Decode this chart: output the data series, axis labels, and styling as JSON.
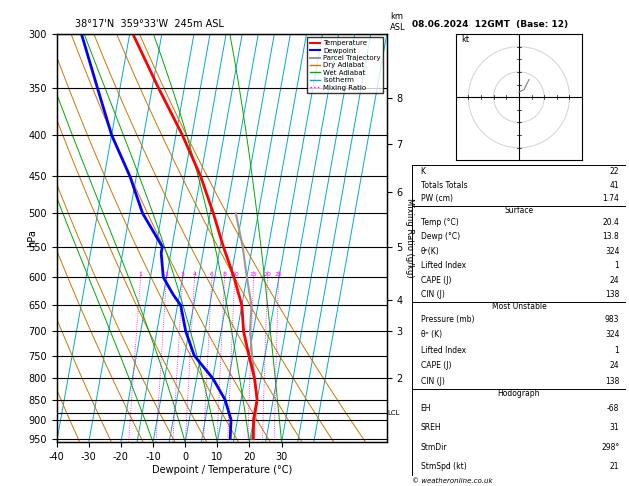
{
  "title_left": "38°17'N  359°33'W  245m ASL",
  "title_right": "08.06.2024  12GMT  (Base: 12)",
  "xlabel": "Dewpoint / Temperature (°C)",
  "ylabel_left": "hPa",
  "pressure_levels": [
    300,
    350,
    400,
    450,
    500,
    550,
    600,
    650,
    700,
    750,
    800,
    850,
    900,
    950
  ],
  "temp_xlim": [
    -40,
    40
  ],
  "temp_labels": [
    -40,
    -30,
    -20,
    -10,
    0,
    10,
    20,
    30
  ],
  "skew_per_decade": 45.0,
  "isotherm_temps": [
    -40,
    -30,
    -20,
    -15,
    -10,
    -5,
    0,
    5,
    10,
    15,
    20,
    25,
    30,
    35,
    40
  ],
  "dry_adiabat_theta": [
    -40,
    -30,
    -20,
    -10,
    0,
    10,
    20,
    30,
    40,
    50,
    60
  ],
  "wet_adiabat_temps": [
    -10,
    0,
    10,
    20,
    30
  ],
  "mixing_ratio_vals": [
    1,
    2,
    3,
    4,
    6,
    8,
    10,
    15,
    20,
    25
  ],
  "lcl_pressure": 883,
  "temperature_profile": {
    "pressure": [
      300,
      350,
      400,
      450,
      500,
      550,
      600,
      650,
      700,
      750,
      800,
      850,
      900,
      950
    ],
    "temp": [
      -39,
      -28,
      -18,
      -10,
      -4,
      1,
      6,
      10,
      12,
      15,
      18,
      20,
      20,
      21
    ]
  },
  "dewpoint_profile": {
    "pressure": [
      300,
      350,
      400,
      450,
      500,
      550,
      560,
      600,
      630,
      650,
      700,
      750,
      800,
      850,
      900,
      950
    ],
    "temp": [
      -55,
      -47,
      -40,
      -32,
      -26,
      -18,
      -18,
      -16,
      -12,
      -9,
      -6,
      -2,
      5,
      10,
      13,
      13.8
    ]
  },
  "parcel_profile": {
    "pressure": [
      500,
      550,
      600,
      650,
      700,
      750,
      800,
      850,
      883,
      900,
      950
    ],
    "temp": [
      3,
      7,
      10,
      13,
      14,
      16,
      18,
      20,
      20.4,
      20.4,
      20.4
    ]
  },
  "temperature_color": "#ff0000",
  "dewpoint_color": "#0000ff",
  "parcel_color": "#999999",
  "dry_adiabat_color": "#cc7700",
  "wet_adiabat_color": "#00aa00",
  "isotherm_color": "#00aacc",
  "mixing_ratio_color": "#ff00ff",
  "background_color": "#ffffff",
  "stats": {
    "K": 22,
    "Totals Totals": 41,
    "PW (cm)": 1.74,
    "Surface_Temp": 20.4,
    "Surface_Dewp": 13.8,
    "Surface_theta_e": 324,
    "Surface_LI": 1,
    "Surface_CAPE": 24,
    "Surface_CIN": 138,
    "MU_Pressure": 983,
    "MU_theta_e": 324,
    "MU_LI": 1,
    "MU_CAPE": 24,
    "MU_CIN": 138,
    "EH": -68,
    "SREH": 31,
    "StmDir": 298,
    "StmSpd": 21
  },
  "km_labels": [
    2,
    3,
    4,
    5,
    6,
    7,
    8
  ],
  "km_pressures": [
    800,
    700,
    640,
    550,
    470,
    410,
    360
  ]
}
